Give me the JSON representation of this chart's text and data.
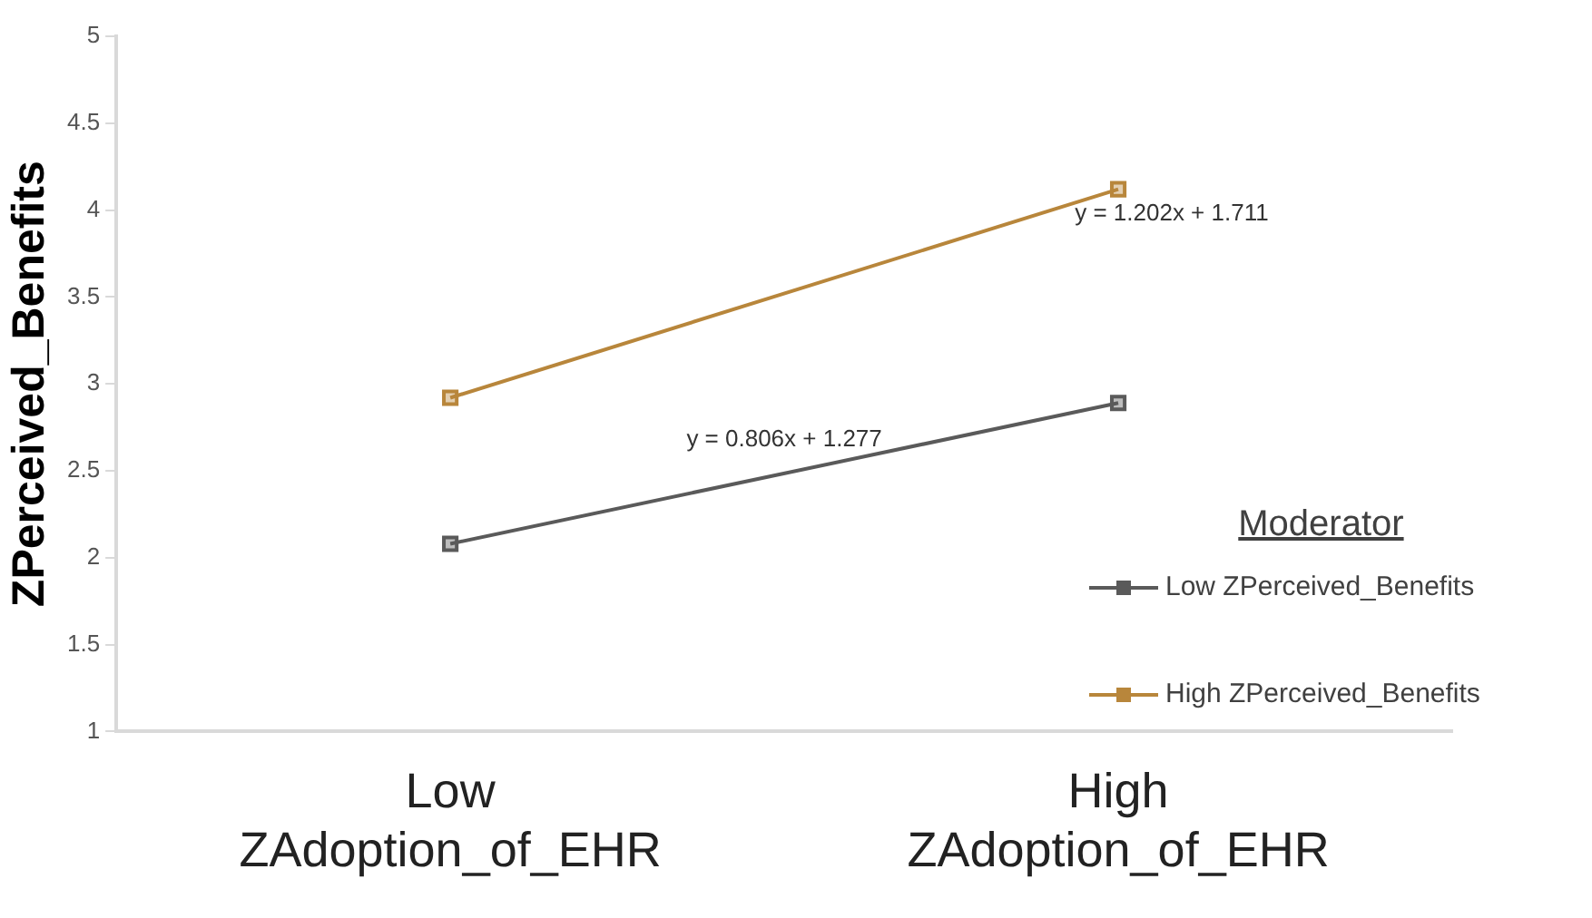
{
  "chart_data": {
    "type": "line",
    "ylabel": "ZPerceived_Benefits",
    "legend_title": "Moderator",
    "categories": [
      "Low ZAdoption_of_EHR",
      "High ZAdoption_of_EHR"
    ],
    "series": [
      {
        "name": "Low ZPerceived_Benefits",
        "color": "#5a5a5a",
        "values": [
          2.08,
          2.89
        ]
      },
      {
        "name": "High ZPerceived_Benefits",
        "color": "#b8863b",
        "values": [
          2.92,
          4.12
        ]
      }
    ],
    "ylim": [
      1,
      5
    ],
    "yticks": [
      1,
      1.5,
      2,
      2.5,
      3,
      3.5,
      4,
      4.5,
      5
    ],
    "grid": false,
    "legend": "right",
    "marker": "square",
    "line_style": "solid",
    "annotations": [
      "y = 1.202x + 1.711",
      "y = 0.806x + 1.277"
    ]
  }
}
